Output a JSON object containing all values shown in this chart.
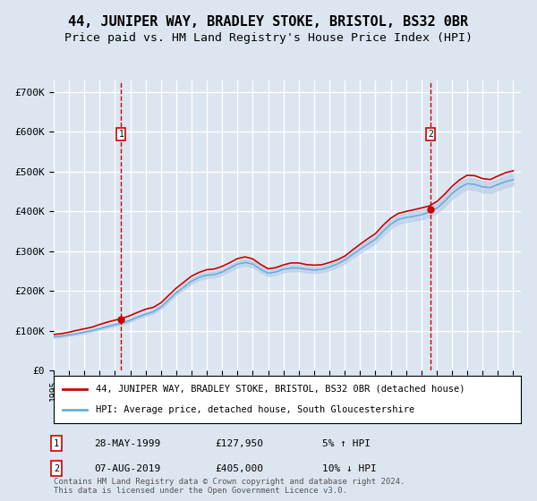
{
  "title": "44, JUNIPER WAY, BRADLEY STOKE, BRISTOL, BS32 0BR",
  "subtitle": "Price paid vs. HM Land Registry's House Price Index (HPI)",
  "title_fontsize": 11,
  "subtitle_fontsize": 9.5,
  "bg_color": "#dce6f1",
  "plot_bg_color": "#dce6f1",
  "grid_color": "#ffffff",
  "ylabel_ticks": [
    "£0",
    "£100K",
    "£200K",
    "£300K",
    "£400K",
    "£500K",
    "£600K",
    "£700K"
  ],
  "ytick_vals": [
    0,
    100000,
    200000,
    300000,
    400000,
    500000,
    600000,
    700000
  ],
  "ylim": [
    0,
    730000
  ],
  "xlim_start": 1995.0,
  "xlim_end": 2025.5,
  "purchase1_date": 1999.4,
  "purchase1_price": 127950,
  "purchase2_date": 2019.6,
  "purchase2_price": 405000,
  "legend_entry1": "44, JUNIPER WAY, BRADLEY STOKE, BRISTOL, BS32 0BR (detached house)",
  "legend_entry2": "HPI: Average price, detached house, South Gloucestershire",
  "annotation1_label": "1",
  "annotation1_date": "28-MAY-1999",
  "annotation1_price": "£127,950",
  "annotation1_hpi": "5% ↑ HPI",
  "annotation2_label": "2",
  "annotation2_date": "07-AUG-2019",
  "annotation2_price": "£405,000",
  "annotation2_hpi": "10% ↓ HPI",
  "footer": "Contains HM Land Registry data © Crown copyright and database right 2024.\nThis data is licensed under the Open Government Licence v3.0.",
  "line_red": "#cc0000",
  "line_blue": "#6baed6",
  "marker_red": "#cc0000",
  "vline_color": "#cc0000",
  "box_color": "#cc0000"
}
